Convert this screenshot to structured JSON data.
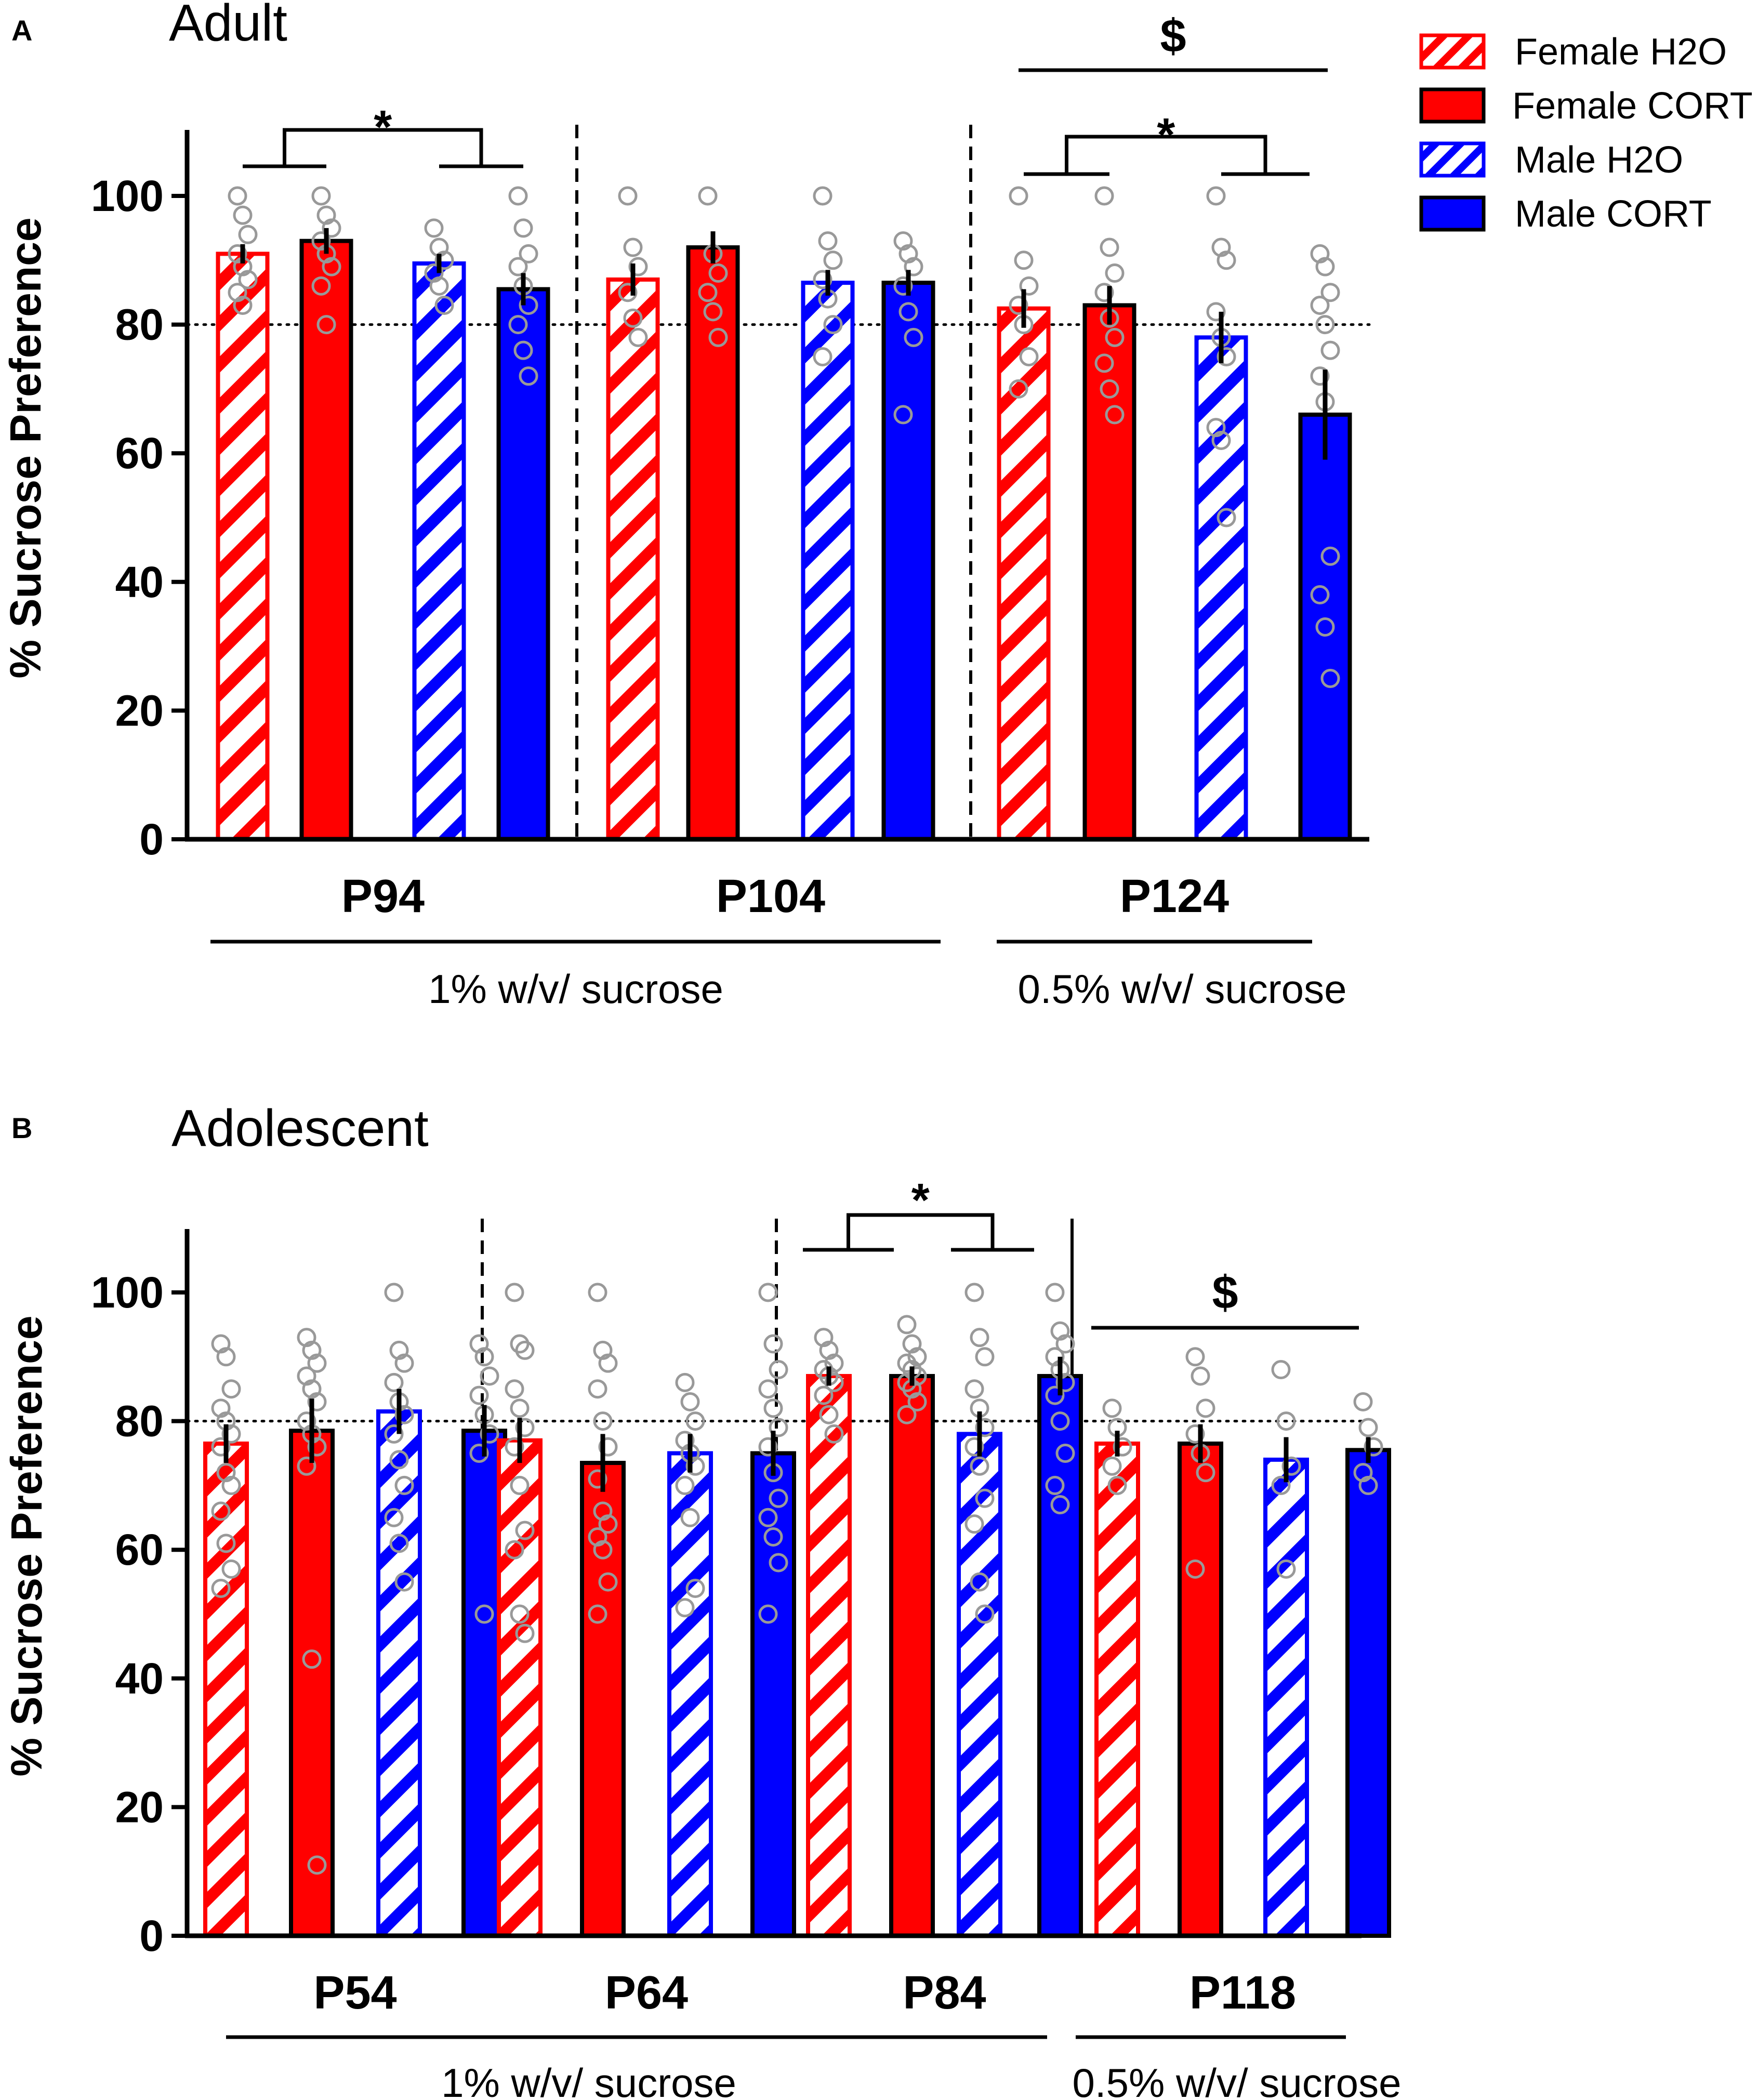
{
  "colors": {
    "female": "#ff0000",
    "male": "#0000ff",
    "axis": "#000000",
    "points": "#999999",
    "hatch_bg": "#ffffff"
  },
  "legend": [
    {
      "label": "Female H2O",
      "sex": "female",
      "treatment": "H2O"
    },
    {
      "label": "Female CORT",
      "sex": "female",
      "treatment": "CORT"
    },
    {
      "label": "Male H2O",
      "sex": "male",
      "treatment": "H2O"
    },
    {
      "label": "Male CORT",
      "sex": "male",
      "treatment": "CORT"
    }
  ],
  "chart_data": [
    {
      "type": "bar",
      "panel": "A",
      "title": "Adult",
      "ylabel": "% Sucrose Preference",
      "ylim": [
        0,
        110
      ],
      "yticks": [
        0,
        20,
        40,
        60,
        80,
        100
      ],
      "reference_line": 80,
      "series_order": [
        "Female H2O",
        "Female CORT",
        "Male H2O",
        "Male CORT"
      ],
      "groups": [
        {
          "label": "P94",
          "means": [
            91,
            93,
            89.5,
            85.5
          ],
          "sem": [
            1.5,
            2,
            1.5,
            2.5
          ],
          "points": [
            [
              100,
              97,
              94,
              91,
              89,
              87,
              85,
              83
            ],
            [
              100,
              97,
              95,
              93,
              91,
              89,
              86,
              80
            ],
            [
              95,
              92,
              90,
              88,
              86,
              83
            ],
            [
              100,
              95,
              91,
              89,
              86,
              83,
              80,
              76,
              72
            ]
          ]
        },
        {
          "label": "P104",
          "means": [
            87,
            92,
            86.5,
            86.5
          ],
          "sem": [
            2.5,
            2.5,
            2,
            2
          ],
          "points": [
            [
              100,
              92,
              89,
              85,
              81,
              78
            ],
            [
              100,
              91,
              88,
              85,
              82,
              78
            ],
            [
              100,
              93,
              90,
              87,
              84,
              80,
              75
            ],
            [
              93,
              91,
              89,
              86,
              82,
              78,
              66
            ]
          ]
        },
        {
          "label": "P124",
          "means": [
            82.5,
            83,
            78,
            66
          ],
          "sem": [
            3,
            3,
            4,
            7
          ],
          "points": [
            [
              100,
              90,
              86,
              83,
              80,
              75,
              70
            ],
            [
              100,
              92,
              88,
              85,
              81,
              78,
              74,
              70,
              66
            ],
            [
              100,
              92,
              90,
              82,
              78,
              75,
              64,
              62,
              50
            ],
            [
              91,
              89,
              85,
              83,
              80,
              76,
              72,
              68,
              44,
              38,
              33,
              25
            ]
          ]
        }
      ],
      "significance": [
        {
          "label": "*",
          "groups": [
            "P94"
          ],
          "comparison": "H2O vs CORT across sexes"
        },
        {
          "label": "*",
          "groups": [
            "P124"
          ],
          "comparison": "Female vs Male"
        },
        {
          "label": "$",
          "groups": [
            "P124"
          ],
          "comparison": "across all P124 groups"
        }
      ],
      "sucrose_labels": [
        {
          "text": "1% w/v/ sucrose",
          "groups": [
            "P94",
            "P104"
          ]
        },
        {
          "text": "0.5% w/v/ sucrose",
          "groups": [
            "P124"
          ]
        }
      ]
    },
    {
      "type": "bar",
      "panel": "B",
      "title": "Adolescent",
      "ylabel": "% Sucrose Preference",
      "ylim": [
        0,
        110
      ],
      "yticks": [
        0,
        20,
        40,
        60,
        80,
        100
      ],
      "reference_line": 80,
      "series_order": [
        "Female H2O",
        "Female CORT",
        "Male H2O",
        "Male CORT"
      ],
      "groups": [
        {
          "label": "P54",
          "means": [
            76.5,
            78.5,
            81.5,
            78.5
          ],
          "sem": [
            3,
            5,
            3.5,
            4
          ],
          "points": [
            [
              92,
              90,
              85,
              82,
              80,
              78,
              76,
              72,
              70,
              66,
              61,
              57,
              54
            ],
            [
              93,
              91,
              89,
              87,
              85,
              83,
              80,
              78,
              76,
              73,
              43,
              11
            ],
            [
              100,
              91,
              89,
              86,
              83,
              81,
              78,
              74,
              70,
              65,
              61,
              55
            ],
            [
              92,
              90,
              87,
              84,
              81,
              78,
              75,
              50
            ]
          ]
        },
        {
          "label": "P64",
          "means": [
            77,
            73.5,
            75,
            75
          ],
          "sem": [
            3.5,
            4.5,
            3,
            3.5
          ],
          "points": [
            [
              100,
              92,
              91,
              85,
              82,
              79,
              76,
              70,
              63,
              60,
              50,
              47
            ],
            [
              100,
              91,
              89,
              85,
              80,
              76,
              71,
              66,
              64,
              62,
              60,
              55,
              50
            ],
            [
              86,
              83,
              80,
              77,
              75,
              73,
              70,
              65,
              54,
              51
            ],
            [
              100,
              92,
              88,
              85,
              82,
              79,
              76,
              72,
              68,
              65,
              62,
              58,
              50
            ]
          ]
        },
        {
          "label": "P84",
          "means": [
            87,
            87,
            78,
            87
          ],
          "sem": [
            1.5,
            1.5,
            3.5,
            3
          ],
          "points": [
            [
              93,
              91,
              89,
              88,
              87,
              86,
              84,
              81,
              78
            ],
            [
              95,
              92,
              90,
              89,
              88,
              87,
              86,
              85,
              83,
              81
            ],
            [
              100,
              93,
              90,
              85,
              82,
              79,
              76,
              73,
              68,
              64,
              55,
              50
            ],
            [
              100,
              94,
              92,
              90,
              88,
              86,
              84,
              80,
              75,
              70,
              67
            ]
          ]
        },
        {
          "label": "P118",
          "means": [
            76.5,
            76.5,
            74,
            75.5
          ],
          "sem": [
            2,
            3,
            3.5,
            2
          ],
          "points": [
            [
              82,
              79,
              76,
              73,
              70
            ],
            [
              90,
              87,
              82,
              78,
              75,
              72,
              57
            ],
            [
              88,
              80,
              73,
              70,
              57
            ],
            [
              83,
              79,
              76,
              72,
              70
            ]
          ]
        }
      ],
      "significance": [
        {
          "label": "*",
          "groups": [
            "P84"
          ],
          "comparison": "Female vs Male"
        },
        {
          "label": "$",
          "groups": [
            "P118"
          ],
          "comparison": "across all P118 groups"
        }
      ],
      "sucrose_labels": [
        {
          "text": "1% w/v/ sucrose",
          "groups": [
            "P54",
            "P64",
            "P84"
          ]
        },
        {
          "text": "0.5% w/v/ sucrose",
          "groups": [
            "P118"
          ]
        }
      ]
    }
  ]
}
